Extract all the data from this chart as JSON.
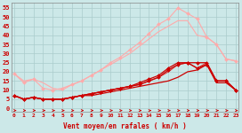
{
  "background_color": "#cce8e8",
  "grid_color": "#aacccc",
  "xlabel": "Vent moyen/en rafales ( km/h )",
  "ylabel_ticks": [
    0,
    5,
    10,
    15,
    20,
    25,
    30,
    35,
    40,
    45,
    50,
    55
  ],
  "x_values": [
    0,
    1,
    2,
    3,
    4,
    5,
    6,
    7,
    8,
    9,
    10,
    11,
    12,
    13,
    14,
    15,
    16,
    17,
    18,
    19,
    20,
    21,
    22,
    23
  ],
  "lines": [
    {
      "y": [
        19,
        14,
        16,
        11,
        10,
        11,
        13,
        15,
        18,
        21,
        25,
        28,
        32,
        36,
        41,
        46,
        49,
        55,
        52,
        49,
        39,
        35,
        27,
        26
      ],
      "color": "#ffaaaa",
      "marker": "D",
      "markersize": 2.0,
      "linewidth": 0.8,
      "zorder": 2
    },
    {
      "y": [
        19,
        15,
        16,
        14,
        11,
        10,
        13,
        15,
        18,
        21,
        24,
        27,
        30,
        34,
        38,
        42,
        45,
        48,
        48,
        40,
        39,
        35,
        27,
        26
      ],
      "color": "#ffaaaa",
      "marker": null,
      "markersize": 0,
      "linewidth": 0.8,
      "zorder": 2
    },
    {
      "y": [
        7,
        5,
        6,
        5,
        5,
        5,
        6,
        7,
        8,
        9,
        10,
        11,
        12,
        13,
        15,
        17,
        20,
        24,
        25,
        22,
        25,
        15,
        15,
        10
      ],
      "color": "#dd4444",
      "marker": null,
      "markersize": 0,
      "linewidth": 0.9,
      "zorder": 3
    },
    {
      "y": [
        7,
        5,
        6,
        5,
        5,
        5,
        6,
        7,
        8,
        9,
        10,
        11,
        12,
        14,
        16,
        18,
        22,
        25,
        25,
        25,
        25,
        15,
        15,
        10
      ],
      "color": "#cc0000",
      "marker": "D",
      "markersize": 2.0,
      "linewidth": 0.9,
      "zorder": 4
    },
    {
      "y": [
        7,
        5,
        6,
        5,
        5,
        5,
        6,
        7,
        8,
        9,
        10,
        11,
        12,
        13,
        15,
        17,
        21,
        24,
        25,
        22,
        24,
        15,
        15,
        10
      ],
      "color": "#cc0000",
      "marker": "D",
      "markersize": 2.0,
      "linewidth": 0.9,
      "zorder": 4
    },
    {
      "y": [
        7,
        5,
        6,
        5,
        5,
        5,
        6,
        7,
        7,
        8,
        9,
        10,
        11,
        12,
        13,
        14,
        15,
        17,
        20,
        21,
        24,
        14,
        14,
        10
      ],
      "color": "#cc0000",
      "marker": null,
      "markersize": 0,
      "linewidth": 0.9,
      "zorder": 3
    }
  ],
  "arrow_color": "#cc0000",
  "ylim": [
    -2,
    58
  ],
  "xlim": [
    -0.3,
    23.3
  ]
}
